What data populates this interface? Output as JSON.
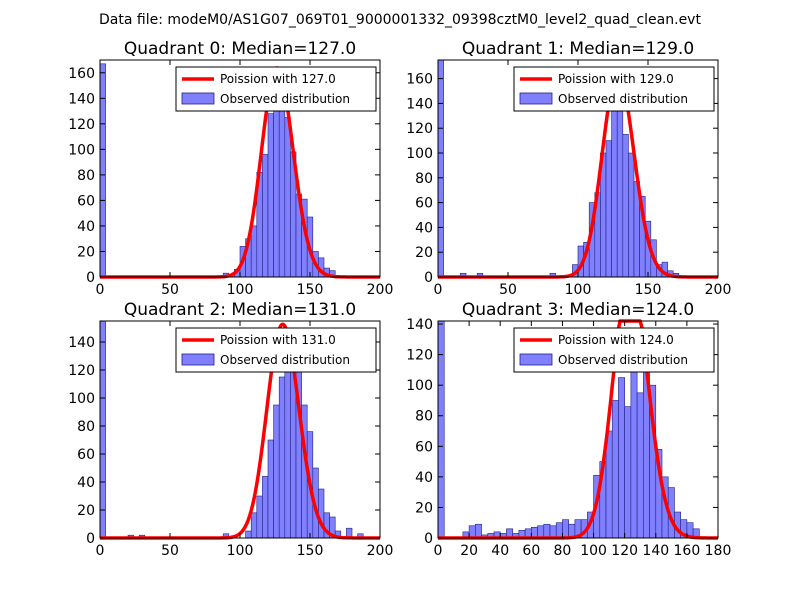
{
  "suptitle": "Data file: modeM0/AS1G07_069T01_9000001332_09398cztM0_level2_quad_clean.evt",
  "colors": {
    "hist_fill": "#8080ff",
    "hist_edge": "#202080",
    "line": "#ff0000"
  },
  "chart_data": [
    {
      "type": "bar",
      "title": "Quadrant 0: Median=127.0",
      "median": 127.0,
      "xlim": [
        0,
        200
      ],
      "ylim": [
        0,
        170
      ],
      "xticks": [
        "0",
        "50",
        "100",
        "150",
        "200"
      ],
      "xtick_values": [
        0,
        50,
        100,
        150,
        200
      ],
      "yticks": [
        "0",
        "20",
        "40",
        "60",
        "80",
        "100",
        "120",
        "140",
        "160"
      ],
      "ytick_values": [
        0,
        20,
        40,
        60,
        80,
        100,
        120,
        140,
        160
      ],
      "legend": [
        "Poission with 127.0",
        "Observed distribution"
      ],
      "bin_width": 4,
      "bins": [
        [
          0,
          167
        ],
        [
          88,
          3
        ],
        [
          92,
          2
        ],
        [
          96,
          6
        ],
        [
          100,
          24
        ],
        [
          104,
          30
        ],
        [
          108,
          40
        ],
        [
          112,
          82
        ],
        [
          116,
          96
        ],
        [
          120,
          128
        ],
        [
          124,
          155
        ],
        [
          128,
          148
        ],
        [
          132,
          125
        ],
        [
          136,
          98
        ],
        [
          140,
          65
        ],
        [
          144,
          61
        ],
        [
          148,
          47
        ],
        [
          152,
          20
        ],
        [
          156,
          15
        ],
        [
          160,
          7
        ],
        [
          164,
          5
        ]
      ]
    },
    {
      "type": "bar",
      "title": "Quadrant 1: Median=129.0",
      "median": 129.0,
      "xlim": [
        0,
        200
      ],
      "ylim": [
        0,
        175
      ],
      "xticks": [
        "0",
        "50",
        "100",
        "150",
        "200"
      ],
      "xtick_values": [
        0,
        50,
        100,
        150,
        200
      ],
      "yticks": [
        "0",
        "20",
        "40",
        "60",
        "80",
        "100",
        "120",
        "140",
        "160"
      ],
      "ytick_values": [
        0,
        20,
        40,
        60,
        80,
        100,
        120,
        140,
        160
      ],
      "legend": [
        "Poission with 129.0",
        "Observed distribution"
      ],
      "bin_width": 4,
      "bins": [
        [
          0,
          175
        ],
        [
          16,
          3
        ],
        [
          28,
          3
        ],
        [
          80,
          3
        ],
        [
          96,
          10
        ],
        [
          100,
          25
        ],
        [
          104,
          28
        ],
        [
          108,
          60
        ],
        [
          112,
          68
        ],
        [
          116,
          100
        ],
        [
          120,
          110
        ],
        [
          124,
          158
        ],
        [
          128,
          140
        ],
        [
          132,
          115
        ],
        [
          136,
          100
        ],
        [
          140,
          77
        ],
        [
          144,
          65
        ],
        [
          148,
          45
        ],
        [
          152,
          30
        ],
        [
          156,
          10
        ],
        [
          160,
          12
        ],
        [
          164,
          5
        ],
        [
          168,
          3
        ]
      ]
    },
    {
      "type": "bar",
      "title": "Quadrant 2: Median=131.0",
      "median": 131.0,
      "xlim": [
        0,
        200
      ],
      "ylim": [
        0,
        155
      ],
      "xticks": [
        "0",
        "50",
        "100",
        "150",
        "200"
      ],
      "xtick_values": [
        0,
        50,
        100,
        150,
        200
      ],
      "yticks": [
        "0",
        "20",
        "40",
        "60",
        "80",
        "100",
        "120",
        "140"
      ],
      "ytick_values": [
        0,
        20,
        40,
        60,
        80,
        100,
        120,
        140
      ],
      "legend": [
        "Poission with 131.0",
        "Observed distribution"
      ],
      "bin_width": 4,
      "bins": [
        [
          0,
          155
        ],
        [
          20,
          2
        ],
        [
          28,
          2
        ],
        [
          88,
          3
        ],
        [
          104,
          5
        ],
        [
          108,
          18
        ],
        [
          112,
          30
        ],
        [
          116,
          44
        ],
        [
          120,
          70
        ],
        [
          124,
          95
        ],
        [
          128,
          115
        ],
        [
          132,
          140
        ],
        [
          136,
          142
        ],
        [
          140,
          125
        ],
        [
          144,
          95
        ],
        [
          148,
          76
        ],
        [
          152,
          50
        ],
        [
          156,
          35
        ],
        [
          160,
          18
        ],
        [
          164,
          15
        ],
        [
          168,
          5
        ],
        [
          176,
          7
        ],
        [
          184,
          3
        ]
      ]
    },
    {
      "type": "bar",
      "title": "Quadrant 3: Median=124.0",
      "median": 124.0,
      "xlim": [
        0,
        180
      ],
      "ylim": [
        0,
        142
      ],
      "xticks": [
        "0",
        "20",
        "40",
        "60",
        "80",
        "100",
        "120",
        "140",
        "160",
        "180"
      ],
      "xtick_values": [
        0,
        20,
        40,
        60,
        80,
        100,
        120,
        140,
        160,
        180
      ],
      "yticks": [
        "0",
        "20",
        "40",
        "60",
        "80",
        "100",
        "120",
        "140"
      ],
      "ytick_values": [
        0,
        20,
        40,
        60,
        80,
        100,
        120,
        140
      ],
      "legend": [
        "Poission with 124.0",
        "Observed distribution"
      ],
      "bin_width": 4,
      "bins": [
        [
          0,
          142
        ],
        [
          16,
          4
        ],
        [
          20,
          8
        ],
        [
          24,
          9
        ],
        [
          28,
          2
        ],
        [
          32,
          3
        ],
        [
          36,
          4
        ],
        [
          40,
          3
        ],
        [
          44,
          6
        ],
        [
          48,
          3
        ],
        [
          52,
          5
        ],
        [
          56,
          6
        ],
        [
          60,
          7
        ],
        [
          64,
          8
        ],
        [
          68,
          9
        ],
        [
          72,
          8
        ],
        [
          76,
          10
        ],
        [
          80,
          12
        ],
        [
          84,
          9
        ],
        [
          88,
          12
        ],
        [
          92,
          12
        ],
        [
          96,
          17
        ],
        [
          100,
          41
        ],
        [
          104,
          50
        ],
        [
          108,
          70
        ],
        [
          112,
          90
        ],
        [
          116,
          105
        ],
        [
          120,
          86
        ],
        [
          124,
          112
        ],
        [
          128,
          95
        ],
        [
          132,
          120
        ],
        [
          136,
          100
        ],
        [
          140,
          58
        ],
        [
          144,
          40
        ],
        [
          148,
          33
        ],
        [
          152,
          17
        ],
        [
          156,
          12
        ],
        [
          160,
          10
        ],
        [
          164,
          6
        ]
      ]
    }
  ]
}
